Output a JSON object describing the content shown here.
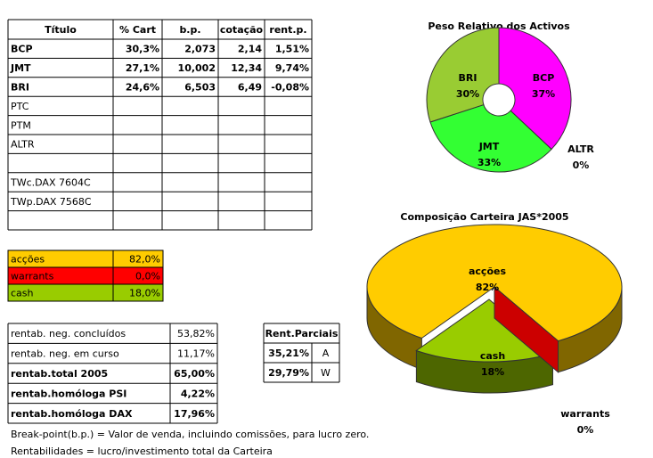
{
  "table": {
    "header": [
      "Título",
      "% Cart",
      "b.p.",
      "cotação",
      "rent.p."
    ],
    "rows": [
      {
        "cells": [
          "BCP",
          "30,3%",
          "2,073",
          "2,14",
          "1,51%"
        ],
        "color": "#009900",
        "bold": true
      },
      {
        "cells": [
          "JMT",
          "27,1%",
          "10,002",
          "12,34",
          "9,74%"
        ],
        "color": "#009900",
        "bold": true
      },
      {
        "cells": [
          "BRI",
          "24,6%",
          "6,503",
          "6,49",
          "-0,08%"
        ],
        "color": "#ff0000",
        "bold": true
      },
      {
        "cells": [
          "PTC"
        ],
        "color": "#a0a0a0",
        "bold": false
      },
      {
        "cells": [
          "PTM"
        ],
        "color": "#a0a0a0",
        "bold": false
      },
      {
        "cells": [
          "ALTR"
        ],
        "color": "#a0a0a0",
        "bold": false
      },
      null,
      {
        "cells": [
          "TWc.DAX 7604C"
        ],
        "color": "#a0a0a0",
        "bold": false
      },
      {
        "cells": [
          "TWp.DAX 7568C"
        ],
        "color": "#a0a0a0",
        "bold": false
      },
      null
    ]
  },
  "allocation": {
    "rows": [
      [
        "acções",
        "82,0%"
      ],
      [
        "warrants",
        "0,0%"
      ],
      [
        "cash",
        "18,0%"
      ]
    ],
    "colors": [
      "#ffcc00",
      "#ff0000",
      "#99cc00"
    ]
  },
  "returns": {
    "rows": [
      {
        "cells": [
          "rentab. neg. concluídos",
          "53,82%"
        ],
        "bold": false
      },
      {
        "cells": [
          "rentab. neg. em curso",
          "11,17%"
        ],
        "bold": false
      },
      {
        "cells": [
          "rentab.total 2005",
          "65,00%"
        ],
        "bold": true
      },
      {
        "cells": [
          "rentab.homóloga PSI",
          "4,22%"
        ],
        "bold": true
      },
      {
        "cells": [
          "rentab.homóloga DAX",
          "17,96%"
        ],
        "bold": true
      }
    ]
  },
  "partials": {
    "header": "Rent.Parciais",
    "rows": [
      [
        "35,21%",
        "A"
      ],
      [
        "29,79%",
        "W"
      ]
    ]
  },
  "notes": [
    "Break-point(b.p.) = Valor de venda, incluindo comissões, para lucro zero.",
    "Rentabilidades = lucro/investimento total da Carteira"
  ],
  "chart_data": [
    {
      "type": "doughnut",
      "title": "Peso Relativo dos Activos",
      "categories": [
        "BCP",
        "JMT",
        "BRI",
        "ALTR"
      ],
      "values": [
        37,
        33,
        30,
        0
      ],
      "value_labels": [
        "37%",
        "33%",
        "30%",
        "0%"
      ],
      "colors": [
        "#ff00ff",
        "#33ff33",
        "#99cc33",
        "#3366ff"
      ]
    },
    {
      "type": "pie3d",
      "title": "Composição Carteira JAS*2005",
      "categories": [
        "acções",
        "cash",
        "warrants"
      ],
      "values": [
        82,
        18,
        0
      ],
      "value_labels": [
        "82%",
        "18%",
        "0%"
      ],
      "colors": [
        "#ffcc00",
        "#99cc00",
        "#cc0000"
      ]
    }
  ]
}
